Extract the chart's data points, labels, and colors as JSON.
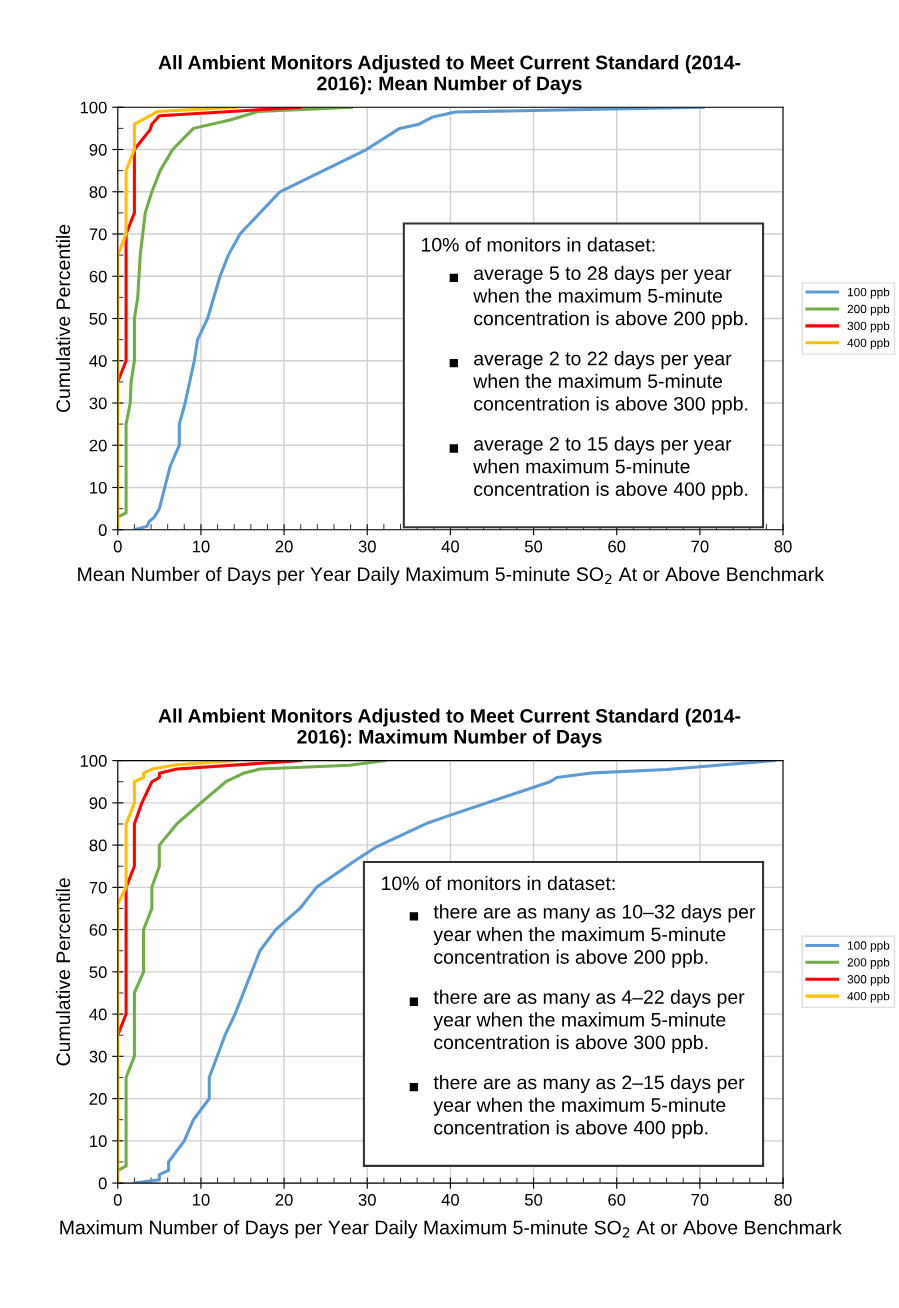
{
  "chart_data": [
    {
      "type": "line",
      "title": "All Ambient Monitors Adjusted to Meet Current Standard (2014-\n2016): Mean Number of Days",
      "xlabel": "Mean Number of Days per Year Daily Maximum 5-minute SO$_{2}$ At or Above Benchmark",
      "ylabel": "Cumulative Percentile",
      "xlim": [
        0,
        80
      ],
      "ylim": [
        0,
        100
      ],
      "xticks": [
        0,
        10,
        20,
        30,
        40,
        50,
        60,
        70,
        80
      ],
      "yticks": [
        0,
        10,
        20,
        30,
        40,
        50,
        60,
        70,
        80,
        90,
        100
      ],
      "grid": true,
      "legend": "right",
      "marker": "none",
      "line_style": "solid",
      "annotations": [
        "10% of monitors in dataset:",
        "average 5 to 28 days per year\nwhen the maximum 5-minute\nconcentration is above 200 ppb.",
        "average 2 to 22 days per year\nwhen the maximum 5-minute\nconcentration is above 300 ppb.",
        "average 2 to 15 days per year\nwhen maximum 5-minute\nconcentration is above 400 ppb."
      ],
      "series": [
        {
          "name": "100 ppb",
          "color": "#5b9bd5",
          "x": [
            2.0,
            3.5,
            3.8,
            4.4,
            5.0,
            6.3,
            7.4,
            7.4,
            8.1,
            9.2,
            9.6,
            10.8,
            12.3,
            13.3,
            14.7,
            19.5,
            29.9,
            33.9,
            36.1,
            37.9,
            40.6,
            70.4
          ],
          "values": [
            0,
            0.8,
            2,
            3,
            5,
            15,
            20,
            25,
            30,
            40,
            45,
            50,
            60,
            65,
            70,
            80,
            90,
            95,
            95.9,
            97.7,
            98.9,
            100
          ]
        },
        {
          "name": "200 ppb",
          "color": "#70ad47",
          "x": [
            0,
            1,
            1,
            1.5,
            1.6,
            2,
            2,
            2.4,
            2.7,
            3.3,
            4.1,
            5.1,
            6.6,
            9.1,
            13.5,
            16.9,
            28.1
          ],
          "values": [
            3,
            4,
            25,
            30,
            35,
            40,
            50,
            55,
            65,
            75,
            80,
            85,
            90,
            95,
            97,
            99,
            100
          ]
        },
        {
          "name": "300 ppb",
          "color": "#ff0000",
          "x": [
            0,
            1,
            1,
            2,
            2,
            3.9,
            4.1,
            5,
            22
          ],
          "values": [
            35,
            40,
            70,
            75,
            90,
            94.7,
            96,
            98,
            100
          ]
        },
        {
          "name": "400 ppb",
          "color": "#ffc000",
          "x": [
            0,
            0,
            1,
            1,
            2,
            2,
            3.9,
            4.7,
            14.1
          ],
          "values": [
            0,
            65,
            70,
            85,
            90,
            96,
            98,
            99,
            100
          ]
        }
      ]
    },
    {
      "type": "line",
      "title": "All Ambient Monitors Adjusted to Meet Current Standard (2014-\n2016): Maximum Number of Days",
      "xlabel": "Maximum Number of Days per Year Daily Maximum 5-minute SO$_{2}$ At or Above Benchmark",
      "ylabel": "Cumulative Percentile",
      "xlim": [
        0,
        80
      ],
      "ylim": [
        0,
        100
      ],
      "xticks": [
        0,
        10,
        20,
        30,
        40,
        50,
        60,
        70,
        80
      ],
      "yticks": [
        0,
        10,
        20,
        30,
        40,
        50,
        60,
        70,
        80,
        90,
        100
      ],
      "grid": true,
      "legend": "right",
      "marker": "none",
      "line_style": "solid",
      "annotations": [
        "10% of monitors in dataset:",
        "there are as many as 10–32 days per\nyear when the maximum 5-minute\nconcentration is above 200 ppb.",
        "there are as many as 4–22 days per\nyear when the maximum 5-minute\nconcentration is above 300 ppb.",
        "there are as many as 2–15 days per\nyear when the maximum 5-minute\nconcentration is above 400 ppb."
      ],
      "series": [
        {
          "name": "100 ppb",
          "color": "#5b9bd5",
          "x": [
            2,
            5,
            5,
            6.1,
            6.1,
            8,
            9.1,
            11,
            11,
            12.9,
            14.1,
            17.1,
            19,
            21.9,
            23.9,
            28.3,
            31.1,
            37.1,
            40,
            52,
            52.8,
            57.2,
            66,
            78.9
          ],
          "values": [
            0,
            0.8,
            2,
            3,
            5,
            10,
            15,
            20,
            25,
            35,
            40,
            55,
            60,
            65,
            70,
            76,
            79.6,
            85.1,
            87.1,
            95,
            96,
            97.1,
            97.9,
            100
          ]
        },
        {
          "name": "200 ppb",
          "color": "#70ad47",
          "x": [
            0,
            1,
            1,
            2,
            2,
            3.1,
            3.1,
            4.1,
            4.1,
            5,
            5,
            7.1,
            10,
            13,
            15.1,
            17.1,
            27.9,
            32.1
          ],
          "values": [
            3,
            4,
            25,
            30,
            45,
            50,
            60,
            65,
            70,
            75,
            80,
            85,
            90,
            95,
            97,
            98,
            98.9,
            100
          ]
        },
        {
          "name": "300 ppb",
          "color": "#ff0000",
          "x": [
            0,
            1,
            1,
            2,
            2,
            2.9,
            4.1,
            5,
            5,
            7.1,
            22
          ],
          "values": [
            35,
            40,
            70,
            75,
            85,
            90,
            95,
            96,
            97,
            98,
            100
          ]
        },
        {
          "name": "400 ppb",
          "color": "#ffc000",
          "x": [
            0,
            0,
            1,
            1,
            2,
            2,
            3.1,
            3.1,
            4.1,
            7.1,
            14.1
          ],
          "values": [
            0,
            66,
            70,
            85,
            90,
            95,
            96,
            97,
            98,
            99,
            100
          ]
        }
      ]
    }
  ]
}
